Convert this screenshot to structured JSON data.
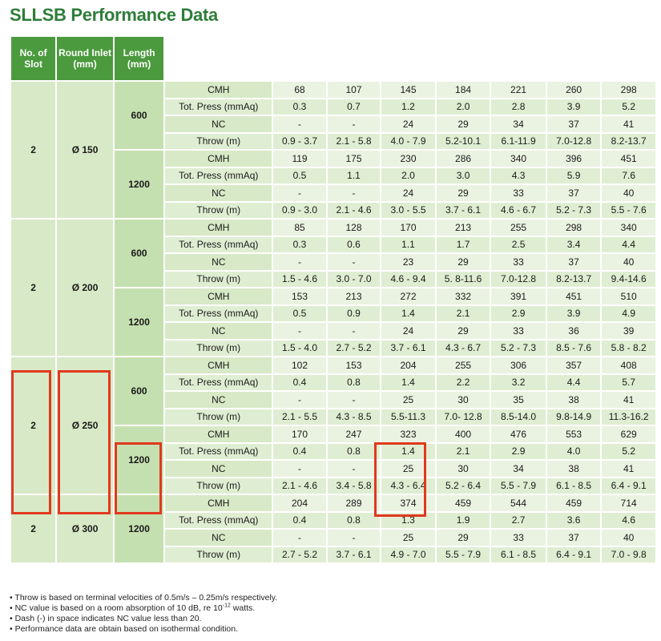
{
  "title": "SLLSB Performance Data",
  "headers": {
    "slot": "No. of Slot",
    "inlet": "Round Inlet (mm)",
    "length": "Length (mm)"
  },
  "groups": [
    {
      "slot": "2",
      "inlet": "Ø 150",
      "lengths": [
        {
          "length": "600",
          "rows": [
            {
              "label": "CMH",
              "values": [
                "68",
                "107",
                "145",
                "184",
                "221",
                "260",
                "298"
              ]
            },
            {
              "label": "Tot. Press (mmAq)",
              "values": [
                "0.3",
                "0.7",
                "1.2",
                "2.0",
                "2.8",
                "3.9",
                "5.2"
              ]
            },
            {
              "label": "NC",
              "values": [
                "-",
                "-",
                "24",
                "29",
                "34",
                "37",
                "41"
              ]
            },
            {
              "label": "Throw (m)",
              "values": [
                "0.9 - 3.7",
                "2.1 - 5.8",
                "4.0 - 7.9",
                "5.2-10.1",
                "6.1-11.9",
                "7.0-12.8",
                "8.2-13.7"
              ]
            }
          ]
        },
        {
          "length": "1200",
          "rows": [
            {
              "label": "CMH",
              "values": [
                "119",
                "175",
                "230",
                "286",
                "340",
                "396",
                "451"
              ]
            },
            {
              "label": "Tot. Press (mmAq)",
              "values": [
                "0.5",
                "1.1",
                "2.0",
                "3.0",
                "4.3",
                "5.9",
                "7.6"
              ]
            },
            {
              "label": "NC",
              "values": [
                "-",
                "-",
                "24",
                "29",
                "33",
                "37",
                "40"
              ]
            },
            {
              "label": "Throw (m)",
              "values": [
                "0.9 - 3.0",
                "2.1 - 4.6",
                "3.0 - 5.5",
                "3.7 - 6.1",
                "4.6 - 6.7",
                "5.2 - 7.3",
                "5.5 - 7.6"
              ]
            }
          ]
        }
      ]
    },
    {
      "slot": "2",
      "inlet": "Ø 200",
      "lengths": [
        {
          "length": "600",
          "rows": [
            {
              "label": "CMH",
              "values": [
                "85",
                "128",
                "170",
                "213",
                "255",
                "298",
                "340"
              ]
            },
            {
              "label": "Tot. Press (mmAq)",
              "values": [
                "0.3",
                "0.6",
                "1.1",
                "1.7",
                "2.5",
                "3.4",
                "4.4"
              ]
            },
            {
              "label": "NC",
              "values": [
                "-",
                "-",
                "23",
                "29",
                "33",
                "37",
                "40"
              ]
            },
            {
              "label": "Throw (m)",
              "values": [
                "1.5 - 4.6",
                "3.0 - 7.0",
                "4.6 - 9.4",
                "5. 8-11.6",
                "7.0-12.8",
                "8.2-13.7",
                "9.4-14.6"
              ]
            }
          ]
        },
        {
          "length": "1200",
          "rows": [
            {
              "label": "CMH",
              "values": [
                "153",
                "213",
                "272",
                "332",
                "391",
                "451",
                "510"
              ]
            },
            {
              "label": "Tot. Press (mmAq)",
              "values": [
                "0.5",
                "0.9",
                "1.4",
                "2.1",
                "2.9",
                "3.9",
                "4.9"
              ]
            },
            {
              "label": "NC",
              "values": [
                "-",
                "-",
                "24",
                "29",
                "33",
                "36",
                "39"
              ]
            },
            {
              "label": "Throw (m)",
              "values": [
                "1.5 - 4.0",
                "2.7 - 5.2",
                "3.7 - 6.1",
                "4.3 - 6.7",
                "5.2 - 7.3",
                "8.5 - 7.6",
                "5.8 - 8.2"
              ]
            }
          ]
        }
      ]
    },
    {
      "slot": "2",
      "inlet": "Ø 250",
      "lengths": [
        {
          "length": "600",
          "rows": [
            {
              "label": "CMH",
              "values": [
                "102",
                "153",
                "204",
                "255",
                "306",
                "357",
                "408"
              ]
            },
            {
              "label": "Tot. Press (mmAq)",
              "values": [
                "0.4",
                "0.8",
                "1.4",
                "2.2",
                "3.2",
                "4.4",
                "5.7"
              ]
            },
            {
              "label": "NC",
              "values": [
                "-",
                "-",
                "25",
                "30",
                "35",
                "38",
                "41"
              ]
            },
            {
              "label": "Throw (m)",
              "values": [
                "2.1 - 5.5",
                "4.3 - 8.5",
                "5.5-11.3",
                "7.0- 12.8",
                "8.5-14.0",
                "9.8-14.9",
                "11.3-16.2"
              ]
            }
          ]
        },
        {
          "length": "1200",
          "rows": [
            {
              "label": "CMH",
              "values": [
                "170",
                "247",
                "323",
                "400",
                "476",
                "553",
                "629"
              ]
            },
            {
              "label": "Tot. Press (mmAq)",
              "values": [
                "0.4",
                "0.8",
                "1.4",
                "2.1",
                "2.9",
                "4.0",
                "5.2"
              ]
            },
            {
              "label": "NC",
              "values": [
                "-",
                "-",
                "25",
                "30",
                "34",
                "38",
                "41"
              ]
            },
            {
              "label": "Throw (m)",
              "values": [
                "2.1 - 4.6",
                "3.4 - 5.8",
                "4.3 - 6.4",
                "5.2 - 6.4",
                "5.5 - 7.9",
                "6.1 - 8.5",
                "6.4 - 9.1"
              ]
            }
          ]
        }
      ]
    },
    {
      "slot": "2",
      "inlet": "Ø 300",
      "lengths": [
        {
          "length": "1200",
          "rows": [
            {
              "label": "CMH",
              "values": [
                "204",
                "289",
                "374",
                "459",
                "544",
                "459",
                "714"
              ]
            },
            {
              "label": "Tot. Press (mmAq)",
              "values": [
                "0.4",
                "0.8",
                "1.3",
                "1.9",
                "2.7",
                "3.6",
                "4.6"
              ]
            },
            {
              "label": "NC",
              "values": [
                "-",
                "-",
                "25",
                "29",
                "33",
                "37",
                "40"
              ]
            },
            {
              "label": "Throw (m)",
              "values": [
                "2.7 - 5.2",
                "3.7 - 6.1",
                "4.9 - 7.0",
                "5.5 - 7.9",
                "6.1 - 8.5",
                "6.4 - 9.1",
                "7.0 - 9.8"
              ]
            }
          ]
        }
      ]
    }
  ],
  "notes": [
    "• Throw is based on terminal velocities of 0.5m/s – 0.25m/s respectively.",
    "• NC value is based on a room absorption of 10 dB, re 10",
    "• Dash (-) in space indicates NC value less than 20.",
    "• Performance data are obtain based on isothermal condition."
  ],
  "note2_sup": "-12",
  "note2_tail": " watts.",
  "highlight_color": "#e0391e"
}
